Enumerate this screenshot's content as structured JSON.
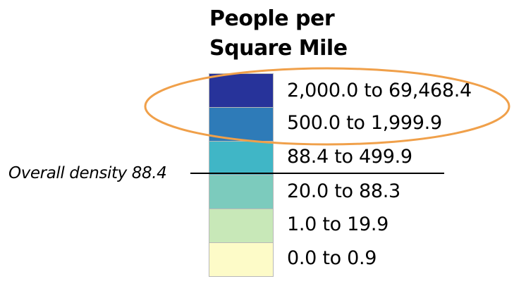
{
  "legend": {
    "title_line1": "People per",
    "title_line2": "Square Mile",
    "classes": [
      {
        "label": "2,000.0 to 69,468.4",
        "color": "#27339a"
      },
      {
        "label": "500.0 to 1,999.9",
        "color": "#2e7bb8"
      },
      {
        "label": "88.4 to 499.9",
        "color": "#40b6c6"
      },
      {
        "label": "20.0 to 88.3",
        "color": "#7ccbbd"
      },
      {
        "label": "1.0 to 19.9",
        "color": "#c8e8b8"
      },
      {
        "label": "0.0 to 0.9",
        "color": "#fdfbc8"
      }
    ]
  },
  "overall_density": {
    "label": "Overall density 88.4"
  },
  "highlight": {
    "color": "#f0a04a"
  }
}
